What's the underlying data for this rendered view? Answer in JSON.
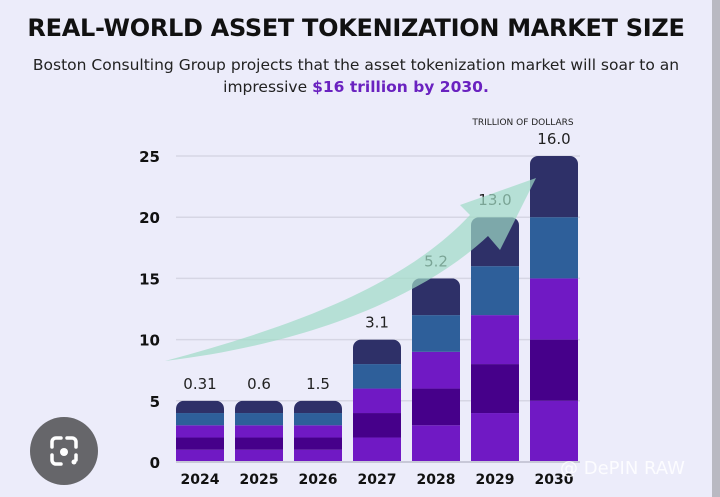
{
  "title": "REAL-WORLD ASSET TOKENIZATION MARKET SIZE",
  "subtitle_plain": "Boston Consulting Group projects that the asset tokenization market will soar to an impressive",
  "subtitle_highlight": "$16 trillion by 2030.",
  "watermark": "@ DePIN RAW",
  "colors": {
    "highlight": "#6a22c0",
    "arrow": "#9fdcc6",
    "segments": [
      "#7019c4",
      "#46008a",
      "#7019c4",
      "#2e5f9a",
      "#2e3068"
    ]
  },
  "icons": {
    "lens": "google-lens-icon"
  },
  "chart_data": {
    "type": "bar",
    "stacked": true,
    "unit_label": "TRILLION OF DOLLARS",
    "categories": [
      "2024",
      "2025",
      "2026",
      "2027",
      "2028",
      "2029",
      "2030"
    ],
    "values": [
      0.31,
      0.6,
      1.5,
      3.1,
      5.2,
      13.0,
      16.0
    ],
    "data_labels": [
      "0.31",
      "0.6",
      "1.5",
      "3.1",
      "5.2",
      "13.0",
      "16.0"
    ],
    "bar_heights": [
      5,
      5,
      5,
      10,
      15,
      20,
      25
    ],
    "segments_per_bar": 5,
    "ylim": [
      0,
      25
    ],
    "yticks": [
      0,
      5,
      10,
      15,
      20,
      25
    ],
    "grid": true,
    "trend_arrow": true
  }
}
